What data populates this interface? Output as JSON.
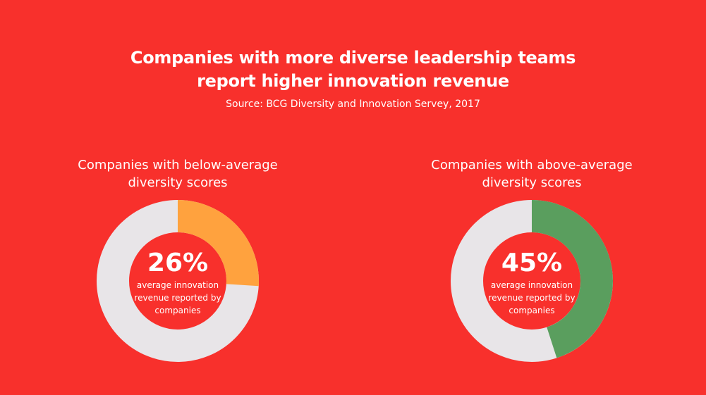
{
  "header": {
    "title_line1": "Companies with more diverse leadership teams",
    "title_line2": "report higher innovation revenue",
    "source": "Source: BCG Diversity and Innovation Servey, 2017"
  },
  "colors": {
    "background": "#F8302C",
    "track": "#E8E5E8",
    "below_fill": "#FFA23E",
    "above_fill": "#5A9E5E"
  },
  "chart_data": [
    {
      "type": "pie",
      "variant": "donut",
      "title_lines": [
        "Companies with below-average",
        "diversity scores"
      ],
      "value_percent": 26,
      "center_label": "26%",
      "center_desc_lines": [
        "average innovation",
        "revenue reported by",
        "companies"
      ]
    },
    {
      "type": "pie",
      "variant": "donut",
      "title_lines": [
        "Companies with above-average",
        "diversity scores"
      ],
      "value_percent": 45,
      "center_label": "45%",
      "center_desc_lines": [
        "average innovation",
        "revenue reported by",
        "companies"
      ]
    }
  ]
}
